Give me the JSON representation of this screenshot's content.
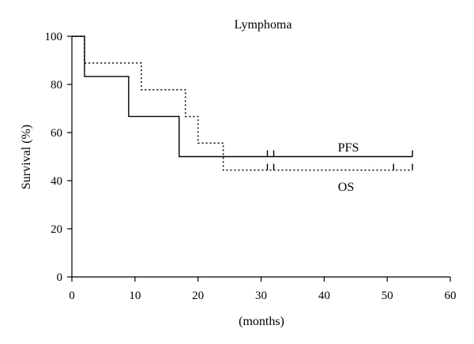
{
  "chart_data": {
    "type": "line",
    "subtype": "kaplan-meier step",
    "title": "Lymphoma",
    "xlabel": "(months)",
    "ylabel": "Survival (%)",
    "xlim": [
      0,
      60
    ],
    "ylim": [
      0,
      100
    ],
    "xticks": [
      0,
      10,
      20,
      30,
      40,
      50,
      60
    ],
    "yticks": [
      0,
      20,
      40,
      60,
      80,
      100
    ],
    "grid": false,
    "legend": "inline labels",
    "series": [
      {
        "name": "PFS",
        "style": "solid",
        "steps": [
          [
            0,
            100
          ],
          [
            2,
            83.3
          ],
          [
            9,
            66.7
          ],
          [
            17,
            50
          ],
          [
            54,
            50
          ]
        ],
        "censored": [
          31,
          32,
          54
        ]
      },
      {
        "name": "OS",
        "style": "dotted",
        "steps": [
          [
            0,
            100
          ],
          [
            2,
            88.9
          ],
          [
            11,
            77.8
          ],
          [
            18,
            66.7
          ],
          [
            20,
            55.6
          ],
          [
            24,
            44.4
          ],
          [
            54,
            44.4
          ]
        ],
        "censored": [
          31,
          32,
          51,
          54
        ]
      }
    ]
  }
}
